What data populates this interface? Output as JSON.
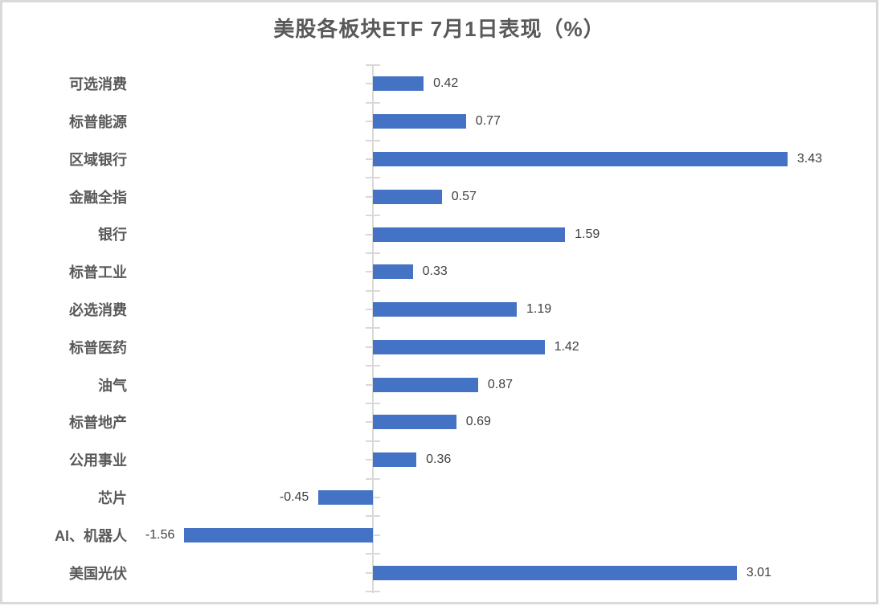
{
  "title": "美股各板块ETF 7月1日表现（%）",
  "chart_data": {
    "type": "bar",
    "orientation": "horizontal",
    "title": "美股各板块ETF 7月1日表现（%）",
    "categories": [
      "可选消费",
      "标普能源",
      "区域银行",
      "金融全指",
      "银行",
      "标普工业",
      "必选消费",
      "标普医药",
      "油气",
      "标普地产",
      "公用事业",
      "芯片",
      "AI、机器人",
      "美国光伏"
    ],
    "values": [
      0.42,
      0.77,
      3.43,
      0.57,
      1.59,
      0.33,
      1.19,
      1.42,
      0.87,
      0.69,
      0.36,
      -0.45,
      -1.56,
      3.01
    ],
    "value_labels": [
      "0.42",
      "0.77",
      "3.43",
      "0.57",
      "1.59",
      "0.33",
      "1.19",
      "1.42",
      "0.87",
      "0.69",
      "0.36",
      "-0.45",
      "-1.56",
      "3.01"
    ],
    "xlabel": "",
    "ylabel": "",
    "xlim": [
      -2,
      4.2
    ],
    "grid": false,
    "legend": false,
    "data_labels": "outside-end",
    "colors": {
      "bar": "#4472C4",
      "axis": "#D9D9D9",
      "title_text": "#595959",
      "category_text": "#595959",
      "value_text": "#404040",
      "frame_border": "#D9D9D9",
      "background": "#FFFFFF"
    }
  }
}
